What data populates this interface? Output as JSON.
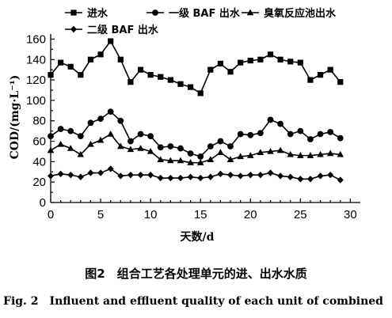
{
  "chart_data": {
    "type": "line",
    "title": "",
    "xlabel": "天数/d",
    "ylabel": "COD/(mg·L⁻¹)",
    "xlim": [
      0,
      31
    ],
    "ylim": [
      0,
      165
    ],
    "xticks": [
      0,
      5,
      10,
      15,
      20,
      25,
      30
    ],
    "yticks": [
      0,
      20,
      40,
      60,
      80,
      100,
      120,
      140,
      160
    ],
    "grid": false,
    "legend_position": "top",
    "x": [
      0,
      1,
      2,
      3,
      4,
      5,
      6,
      7,
      8,
      9,
      10,
      11,
      12,
      13,
      14,
      15,
      16,
      17,
      18,
      19,
      20,
      21,
      22,
      23,
      24,
      25,
      26,
      27,
      28,
      29,
      30
    ],
    "series": [
      {
        "name": "进水",
        "marker": "square",
        "values": [
          125,
          137,
          133,
          125,
          140,
          145,
          158,
          140,
          118,
          130,
          125,
          123,
          120,
          116,
          113,
          107,
          130,
          136,
          128,
          137,
          139,
          140,
          145,
          140,
          138,
          137,
          120,
          125,
          130,
          118,
          null
        ]
      },
      {
        "name": "一级 BAF 出水",
        "marker": "circle",
        "values": [
          65,
          72,
          70,
          65,
          78,
          82,
          89,
          80,
          60,
          67,
          65,
          54,
          55,
          53,
          48,
          45,
          55,
          60,
          55,
          67,
          66,
          68,
          81,
          77,
          67,
          70,
          62,
          67,
          69,
          63,
          null
        ]
      },
      {
        "name": "臭氧反应池出水",
        "marker": "triangle",
        "values": [
          51,
          57,
          53,
          47,
          57,
          61,
          67,
          55,
          52,
          53,
          50,
          42,
          41,
          41,
          39,
          39,
          42,
          49,
          42,
          45,
          46,
          49,
          50,
          51,
          47,
          46,
          46,
          47,
          48,
          47,
          null
        ]
      },
      {
        "name": "二级 BAF 出水",
        "marker": "diamond",
        "values": [
          26,
          28,
          27,
          25,
          29,
          29,
          33,
          26,
          27,
          27,
          27,
          24,
          24,
          24,
          25,
          24,
          25,
          28,
          27,
          26,
          27,
          27,
          29,
          26,
          25,
          23,
          23,
          26,
          27,
          22,
          null
        ]
      }
    ]
  },
  "legend": {
    "items": [
      "进水",
      "一级 BAF 出水",
      "臭氧反应池出水",
      "二级 BAF 出水"
    ]
  },
  "caption": {
    "zh": "图2　组合工艺各处理单元的进、出水水质",
    "en": "Fig. 2　Influent and effluent quality of each unit of combined"
  }
}
